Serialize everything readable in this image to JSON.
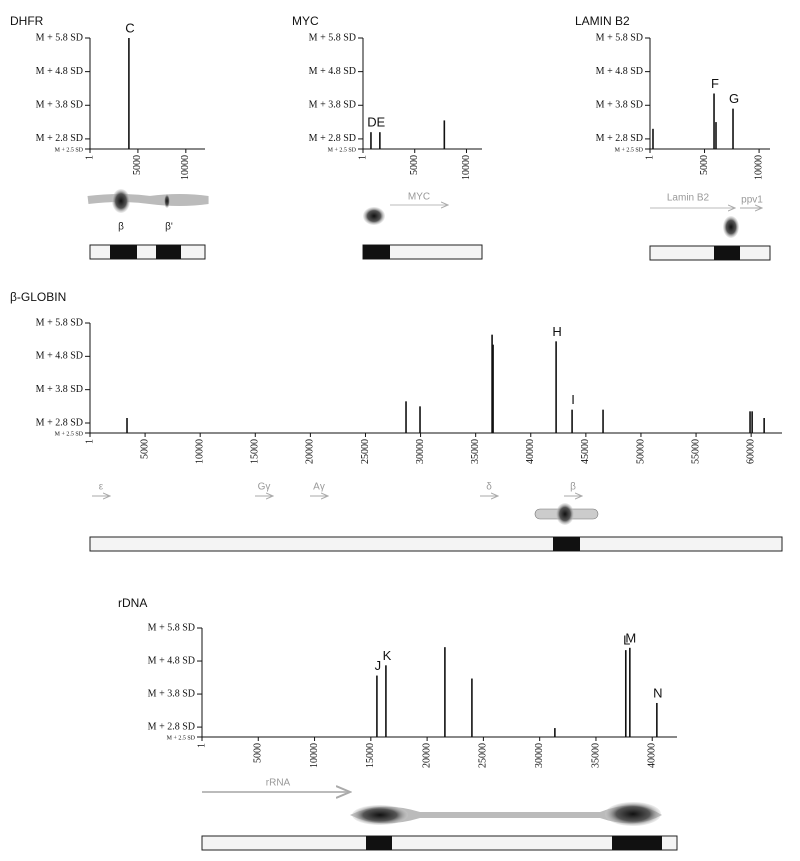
{
  "chart_data": [
    {
      "type": "spike",
      "title": "DHFR",
      "color": "#111",
      "x": [
        4060
      ],
      "values": [
        5.8
      ],
      "labels": [
        "C"
      ],
      "xlim": [
        1,
        12000
      ],
      "xticks": [
        1,
        5000,
        10000
      ],
      "ylim": [
        2.5,
        5.8
      ],
      "yticks": [
        {
          "value": 2.5,
          "label": "M + 2.5 SD"
        },
        {
          "value": 2.8,
          "label": "M + 2.8 SD"
        },
        {
          "value": 3.8,
          "label": "M + 3.8 SD"
        },
        {
          "value": 4.8,
          "label": "M + 4.8 SD"
        },
        {
          "value": 5.8,
          "label": "M + 5.8 SD"
        }
      ],
      "diagram_labels": [
        "β",
        "β'"
      ]
    },
    {
      "type": "spike",
      "title": "MYC",
      "color": "#111",
      "x": [
        770,
        1630,
        7860
      ],
      "values": [
        3.0,
        3.0,
        3.35
      ],
      "labels": [
        "D",
        "E",
        null
      ],
      "xlim": [
        1,
        11500
      ],
      "xticks": [
        1,
        5000,
        10000
      ],
      "ylim": [
        2.5,
        5.8
      ],
      "yticks": [
        {
          "value": 2.5,
          "label": "M + 2.5 SD"
        },
        {
          "value": 2.8,
          "label": "M + 2.8 SD"
        },
        {
          "value": 3.8,
          "label": "M + 3.8 SD"
        },
        {
          "value": 4.8,
          "label": "M + 4.8 SD"
        },
        {
          "value": 5.8,
          "label": "M + 5.8 SD"
        }
      ],
      "diagram_labels": [
        "MYC"
      ]
    },
    {
      "type": "spike",
      "title": "LAMIN B2",
      "color": "#111",
      "x": [
        275,
        5870,
        6050,
        7610
      ],
      "values": [
        3.1,
        4.15,
        3.3,
        3.7
      ],
      "labels": [
        null,
        "F",
        null,
        "G"
      ],
      "xlim": [
        1,
        11000
      ],
      "xticks": [
        1,
        5000,
        10000
      ],
      "ylim": [
        2.5,
        5.8
      ],
      "yticks": [
        {
          "value": 2.5,
          "label": "M + 2.5 SD"
        },
        {
          "value": 2.8,
          "label": "M + 2.8 SD"
        },
        {
          "value": 3.8,
          "label": "M + 3.8 SD"
        },
        {
          "value": 4.8,
          "label": "M + 4.8 SD"
        },
        {
          "value": 5.8,
          "label": "M + 5.8 SD"
        }
      ],
      "diagram_labels": [
        "Lamin B2",
        "ppv1"
      ]
    },
    {
      "type": "spike",
      "title": "β-GLOBIN",
      "color": "#111",
      "x": [
        3360,
        28680,
        29950,
        36490,
        36580,
        42300,
        43750,
        46560,
        59900,
        60090,
        61180
      ],
      "values": [
        2.95,
        3.45,
        3.3,
        5.45,
        5.15,
        5.25,
        3.2,
        3.2,
        3.15,
        3.15,
        2.95
      ],
      "labels": [
        null,
        null,
        null,
        null,
        null,
        "H",
        "I",
        null,
        null,
        null,
        null
      ],
      "xlim": [
        1,
        62800
      ],
      "xticks": [
        1,
        5000,
        10000,
        15000,
        20000,
        25000,
        30000,
        35000,
        40000,
        45000,
        50000,
        55000,
        60000
      ],
      "ylim": [
        2.5,
        5.8
      ],
      "yticks": [
        {
          "value": 2.5,
          "label": "M + 2.5 SD"
        },
        {
          "value": 2.8,
          "label": "M + 2.8 SD"
        },
        {
          "value": 3.8,
          "label": "M + 3.8 SD"
        },
        {
          "value": 4.8,
          "label": "M + 4.8 SD"
        },
        {
          "value": 5.8,
          "label": "M + 5.8 SD"
        }
      ],
      "diagram_labels": [
        "ε",
        "Gγ",
        "Aγ",
        "δ",
        "β"
      ]
    },
    {
      "type": "spike",
      "title": "rDNA",
      "color": "#111",
      "x": [
        15540,
        16340,
        21580,
        23980,
        31350,
        37650,
        38010,
        40410
      ],
      "values": [
        4.36,
        4.67,
        5.22,
        4.27,
        2.77,
        5.13,
        5.2,
        3.53
      ],
      "labels": [
        "J",
        "K",
        null,
        null,
        null,
        "L",
        "M",
        "N"
      ],
      "xlim": [
        1,
        42200
      ],
      "xticks": [
        1,
        5000,
        10000,
        15000,
        20000,
        25000,
        30000,
        35000,
        40000
      ],
      "ylim": [
        2.5,
        5.8
      ],
      "yticks": [
        {
          "value": 2.5,
          "label": "M + 2.5 SD"
        },
        {
          "value": 2.8,
          "label": "M + 2.8 SD"
        },
        {
          "value": 3.8,
          "label": "M + 3.8 SD"
        },
        {
          "value": 4.8,
          "label": "M + 4.8 SD"
        },
        {
          "value": 5.8,
          "label": "M + 5.8 SD"
        }
      ],
      "diagram_labels": [
        "rRNA"
      ]
    }
  ]
}
